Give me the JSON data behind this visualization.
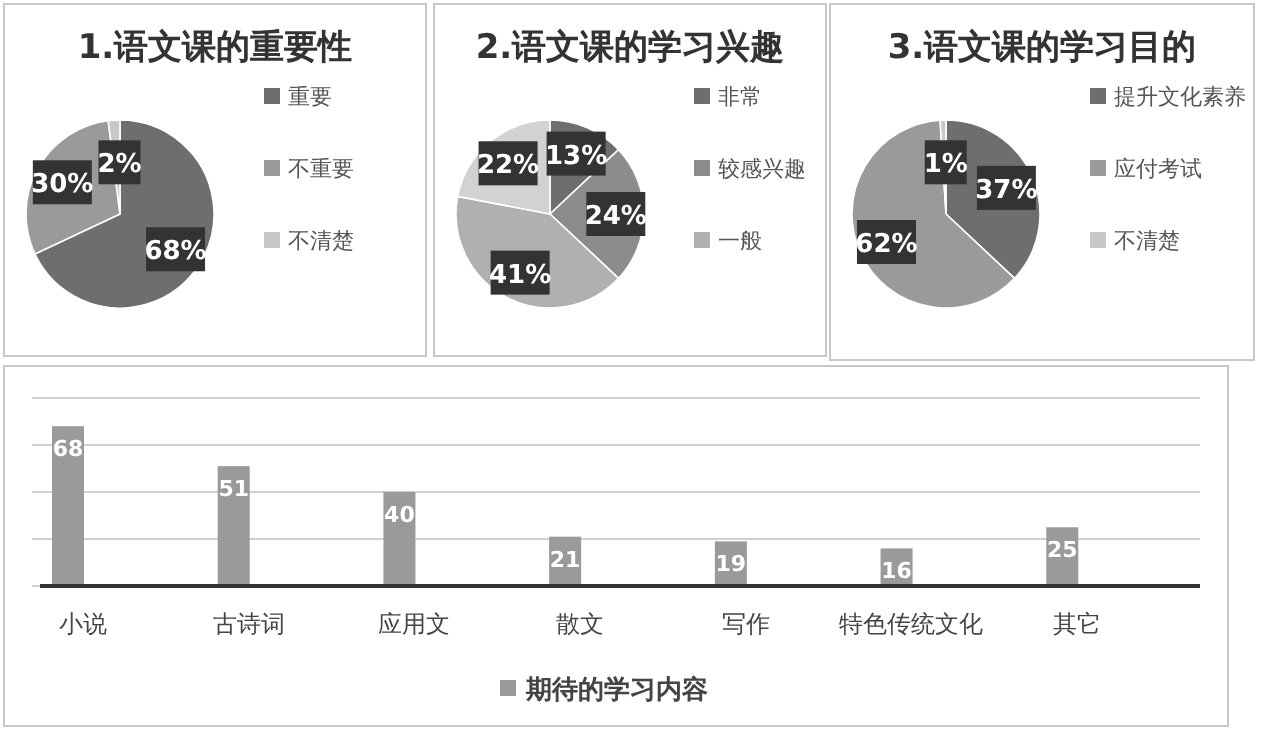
{
  "chart_data": [
    {
      "type": "pie",
      "title": "1.语文课的重要性",
      "categories": [
        "重要",
        "不重要",
        "不清楚"
      ],
      "values": [
        68,
        30,
        2
      ],
      "colors": [
        "#6e6e6e",
        "#9a9a9a",
        "#c8c8c8"
      ],
      "value_labels": [
        "68%",
        "30%",
        "2%"
      ],
      "legend": "right"
    },
    {
      "type": "pie",
      "title": "2.语文课的学习兴趣",
      "categories": [
        "非常",
        "较感兴趣",
        "一般",
        null
      ],
      "values": [
        13,
        24,
        41,
        22
      ],
      "colors": [
        "#6e6e6e",
        "#8c8c8c",
        "#b0b0b0",
        "#d2d2d2"
      ],
      "value_labels": [
        "13%",
        "24%",
        "41%",
        "22%"
      ],
      "legend": "right"
    },
    {
      "type": "pie",
      "title": "3.语文课的学习目的",
      "categories": [
        "提升文化素养",
        "应付考试",
        "不清楚"
      ],
      "values": [
        37,
        62,
        1
      ],
      "colors": [
        "#6e6e6e",
        "#9a9a9a",
        "#c8c8c8"
      ],
      "value_labels": [
        "37%",
        "62%",
        "1%"
      ],
      "legend": "right"
    },
    {
      "type": "bar",
      "categories": [
        "小说",
        "古诗词",
        "应用文",
        "散文",
        "写作",
        "特色传统文化",
        "其它"
      ],
      "series": [
        {
          "name": "期待的学习内容",
          "color": "#9a9a9a",
          "values": [
            68,
            51,
            40,
            21,
            19,
            16,
            25
          ]
        }
      ],
      "ylim": [
        0,
        80
      ],
      "yticks": [
        {
          "value": 0,
          "label": null
        },
        {
          "value": 20,
          "label": null
        },
        {
          "value": 40,
          "label": null
        },
        {
          "value": 60,
          "label": null
        },
        {
          "value": 80,
          "label": null
        }
      ],
      "grid": "y",
      "data_labels": true,
      "legend": "bottom",
      "tick_labels": "x"
    }
  ]
}
